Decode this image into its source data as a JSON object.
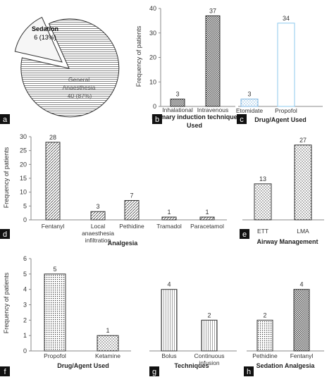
{
  "colors": {
    "axis": "#8a8a8a",
    "bar_stroke": "#222222",
    "etomidate_stroke": "#7fb6e0",
    "propofol_stroke": "#8cc8ee",
    "badge_bg": "#111111",
    "badge_text": "#ffffff"
  },
  "chart_data": [
    {
      "panel": "a",
      "type": "pie",
      "slices": [
        {
          "label": "Sedation",
          "value_text": "6 (13%)",
          "value": 6
        },
        {
          "label": "General Anaesthesia",
          "value_text": "40 (87%)",
          "value": 40
        }
      ]
    },
    {
      "panel": "b",
      "type": "bar",
      "ylabel": "Frequency of patients",
      "xlabel": "Primary induction technique Used",
      "categories": [
        "Inhalational",
        "Intravenous"
      ],
      "values": [
        3,
        37
      ],
      "ylim": [
        0,
        40
      ],
      "yticks": [
        0,
        10,
        20,
        30,
        40
      ]
    },
    {
      "panel": "c",
      "type": "bar",
      "xlabel": "Drug/Agent Used",
      "categories": [
        "Etomidate",
        "Propofol"
      ],
      "values": [
        3,
        34
      ],
      "ylim": [
        0,
        40
      ]
    },
    {
      "panel": "d",
      "type": "bar",
      "ylabel": "Frequency of patients",
      "xlabel": "Analgesia",
      "categories": [
        "Fentanyl",
        "Local anaesthesia infiltration",
        "Pethidine",
        "Tramadol",
        "Paracetamol"
      ],
      "values": [
        28,
        3,
        7,
        1,
        1
      ],
      "ylim": [
        0,
        30
      ],
      "yticks": [
        0,
        5,
        10,
        15,
        20,
        25,
        30
      ]
    },
    {
      "panel": "e",
      "type": "bar",
      "xlabel": "Airway Management",
      "categories": [
        "ETT",
        "LMA"
      ],
      "values": [
        13,
        27
      ],
      "ylim": [
        0,
        30
      ]
    },
    {
      "panel": "f",
      "type": "bar",
      "ylabel": "Frequency of patients",
      "xlabel": "Drug/Agent Used",
      "categories": [
        "Propofol",
        "Ketamine"
      ],
      "values": [
        5,
        1
      ],
      "ylim": [
        0,
        6
      ],
      "yticks": [
        0,
        1,
        2,
        3,
        4,
        5,
        6
      ]
    },
    {
      "panel": "g",
      "type": "bar",
      "xlabel": "Techniques",
      "categories": [
        "Bolus",
        "Continuous infusion"
      ],
      "values": [
        4,
        2
      ],
      "ylim": [
        0,
        6
      ]
    },
    {
      "panel": "h",
      "type": "bar",
      "xlabel": "Sedation Analgesia",
      "categories": [
        "Pethidine",
        "Fentanyl"
      ],
      "values": [
        2,
        4
      ],
      "ylim": [
        0,
        6
      ]
    }
  ]
}
